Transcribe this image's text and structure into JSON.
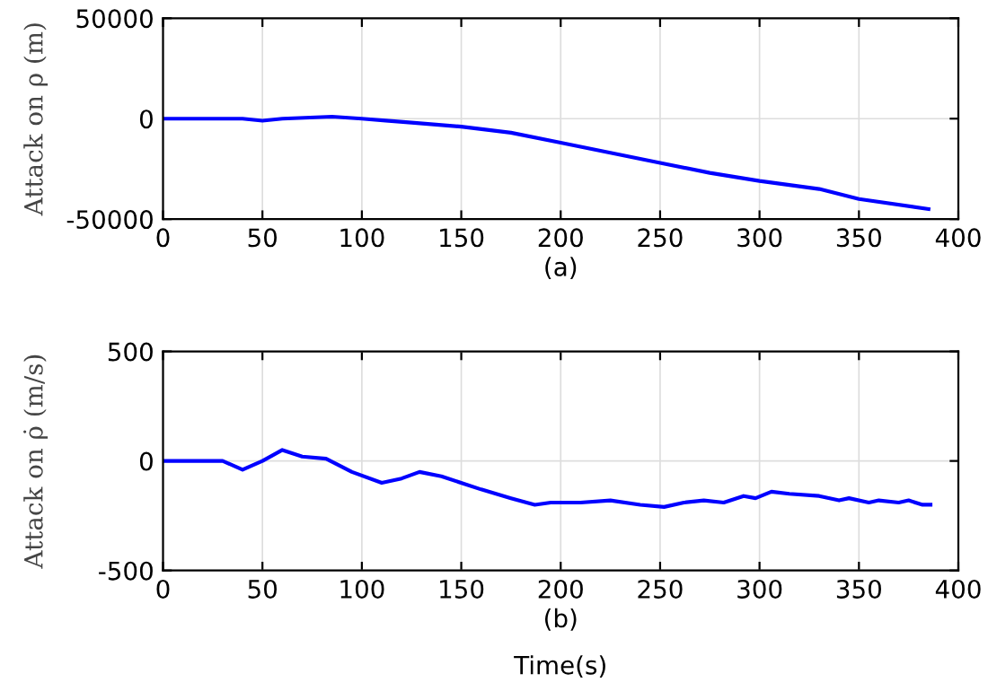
{
  "chart_data": [
    {
      "type": "line",
      "xlabel": "(a)",
      "ylabel": "Attack on ρ (m)",
      "xlim": [
        0,
        400
      ],
      "xticks": [
        0,
        50,
        100,
        150,
        200,
        250,
        300,
        350,
        400
      ],
      "ylim": [
        -50000,
        50000
      ],
      "yticks": [
        -50000,
        0,
        50000
      ],
      "grid": true,
      "x": [
        0,
        20,
        40,
        50,
        60,
        85,
        100,
        112,
        125,
        150,
        175,
        200,
        225,
        250,
        275,
        300,
        330,
        350,
        385
      ],
      "series": [
        {
          "color": "#0000ff",
          "values": [
            0,
            0,
            0,
            -1000,
            0,
            1000,
            0,
            -1000,
            -2000,
            -4000,
            -7000,
            -12000,
            -17000,
            -22000,
            -27000,
            -31000,
            -35000,
            -40000,
            -45000
          ]
        }
      ]
    },
    {
      "type": "line",
      "xlabel": "(b)",
      "ylabel": "Attack on ρ̇ (m/s)",
      "annotations": [
        "Time(s)"
      ],
      "xlim": [
        0,
        400
      ],
      "xticks": [
        0,
        50,
        100,
        150,
        200,
        250,
        300,
        350,
        400
      ],
      "ylim": [
        -500,
        500
      ],
      "yticks": [
        -500,
        0,
        500
      ],
      "grid": true,
      "x": [
        0,
        30,
        40,
        50,
        60,
        70,
        82,
        95,
        110,
        120,
        129,
        140,
        160,
        175,
        187,
        195,
        210,
        225,
        240,
        252,
        262,
        272,
        282,
        292,
        298,
        306,
        315,
        330,
        340,
        345,
        355,
        360,
        370,
        375,
        382,
        386
      ],
      "series": [
        {
          "color": "#0000ff",
          "values": [
            0,
            0,
            -40,
            0,
            50,
            20,
            10,
            -50,
            -100,
            -80,
            -50,
            -70,
            -130,
            -170,
            -200,
            -190,
            -190,
            -180,
            -200,
            -210,
            -190,
            -180,
            -190,
            -160,
            -170,
            -140,
            -150,
            -160,
            -180,
            -170,
            -190,
            -180,
            -190,
            -180,
            -200,
            -200
          ]
        }
      ]
    }
  ]
}
